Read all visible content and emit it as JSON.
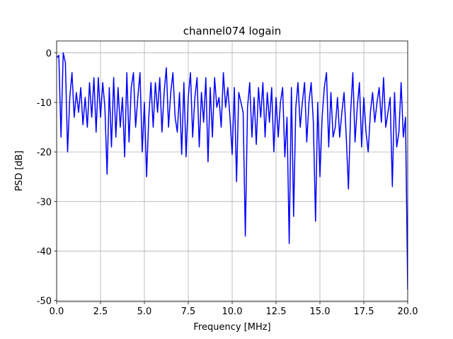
{
  "chart_data": {
    "type": "line",
    "title": "channel074 logain",
    "xlabel": "Frequency [MHz]",
    "ylabel": "PSD [dB]",
    "x": [
      0,
      0.125,
      0.25,
      0.375,
      0.5,
      0.625,
      0.75,
      0.875,
      1.0,
      1.125,
      1.25,
      1.375,
      1.5,
      1.625,
      1.75,
      1.875,
      2.0,
      2.125,
      2.25,
      2.375,
      2.5,
      2.625,
      2.75,
      2.875,
      3.0,
      3.125,
      3.25,
      3.375,
      3.5,
      3.625,
      3.75,
      3.875,
      4.0,
      4.125,
      4.25,
      4.375,
      4.5,
      4.625,
      4.75,
      4.875,
      5.0,
      5.125,
      5.25,
      5.375,
      5.5,
      5.625,
      5.75,
      5.875,
      6.0,
      6.125,
      6.25,
      6.375,
      6.5,
      6.625,
      6.75,
      6.875,
      7.0,
      7.125,
      7.25,
      7.375,
      7.5,
      7.625,
      7.75,
      7.875,
      8.0,
      8.125,
      8.25,
      8.375,
      8.5,
      8.625,
      8.75,
      8.875,
      9.0,
      9.125,
      9.25,
      9.375,
      9.5,
      9.625,
      9.75,
      9.875,
      10.0,
      10.125,
      10.25,
      10.375,
      10.5,
      10.625,
      10.75,
      10.875,
      11.0,
      11.125,
      11.25,
      11.375,
      11.5,
      11.625,
      11.75,
      11.875,
      12.0,
      12.125,
      12.25,
      12.375,
      12.5,
      12.625,
      12.75,
      12.875,
      13.0,
      13.125,
      13.25,
      13.375,
      13.5,
      13.625,
      13.75,
      13.875,
      14.0,
      14.125,
      14.25,
      14.375,
      14.5,
      14.625,
      14.75,
      14.875,
      15.0,
      15.125,
      15.25,
      15.375,
      15.5,
      15.625,
      15.75,
      15.875,
      16.0,
      16.125,
      16.25,
      16.375,
      16.5,
      16.625,
      16.75,
      16.875,
      17.0,
      17.125,
      17.25,
      17.375,
      17.5,
      17.625,
      17.75,
      17.875,
      18.0,
      18.125,
      18.25,
      18.375,
      18.5,
      18.625,
      18.75,
      18.875,
      19.0,
      19.125,
      19.25,
      19.375,
      19.5,
      19.625,
      19.75,
      19.875,
      20.0
    ],
    "series": [
      {
        "color": "#0000ff",
        "values": [
          -1,
          -0.5,
          -17,
          0,
          -2,
          -20,
          -9,
          -4,
          -13,
          -8,
          -12,
          -7,
          -14.5,
          -9,
          -15,
          -6,
          -13,
          -5,
          -16,
          -5,
          -13,
          -6,
          -11,
          -24.5,
          -7,
          -19,
          -5,
          -17,
          -7,
          -15,
          -9,
          -21,
          -4,
          -18,
          -7,
          -4,
          -15,
          -9,
          -4,
          -20,
          -10,
          -25,
          -13,
          -6,
          -15,
          -6,
          -12,
          -5,
          -16,
          -8,
          -3,
          -15,
          -8,
          -4,
          -13,
          -16,
          -8,
          -20.5,
          -6,
          -21,
          -9,
          -4,
          -17,
          -9,
          -5,
          -19,
          -8,
          -14,
          -5,
          -22,
          -7,
          -17,
          -5,
          -11,
          -9,
          -15,
          -4,
          -11,
          -7,
          -13,
          -20.5,
          -7,
          -26,
          -8,
          -10,
          -12,
          -37,
          -11,
          -6,
          -17,
          -9,
          -18.5,
          -7,
          -13,
          -6,
          -17,
          -8,
          -14,
          -7,
          -20,
          -9,
          -17,
          -10,
          -7,
          -21,
          -13,
          -38.5,
          -7,
          -33,
          -11,
          -6,
          -15,
          -10,
          -6,
          -18,
          -10,
          -6,
          -14,
          -34,
          -10,
          -25,
          -13,
          -7,
          -4,
          -19,
          -8,
          -17,
          -15,
          -9,
          -17,
          -12,
          -8,
          -17,
          -27.5,
          -12,
          -4,
          -18,
          -11,
          -6,
          -19,
          -9,
          -16,
          -20,
          -12,
          -8,
          -14,
          -10,
          -7,
          -14,
          -5,
          -15,
          -12,
          -9,
          -27,
          -8,
          -19,
          -16,
          -6,
          -17,
          -13,
          -47.8
        ]
      }
    ],
    "xlim": [
      0,
      20
    ],
    "ylim": [
      -50.2,
      2.4
    ],
    "xticks": [
      {
        "value": 0,
        "label": "0.0"
      },
      2.5,
      {
        "value": 5,
        "label": "5.0"
      },
      7.5,
      {
        "value": 10,
        "label": "10.0"
      },
      12.5,
      {
        "value": 15,
        "label": "15.0"
      },
      17.5,
      {
        "value": 20,
        "label": "20.0"
      }
    ],
    "yticks": [
      0,
      -10,
      -20,
      -30,
      -40,
      -50
    ],
    "grid": true
  }
}
